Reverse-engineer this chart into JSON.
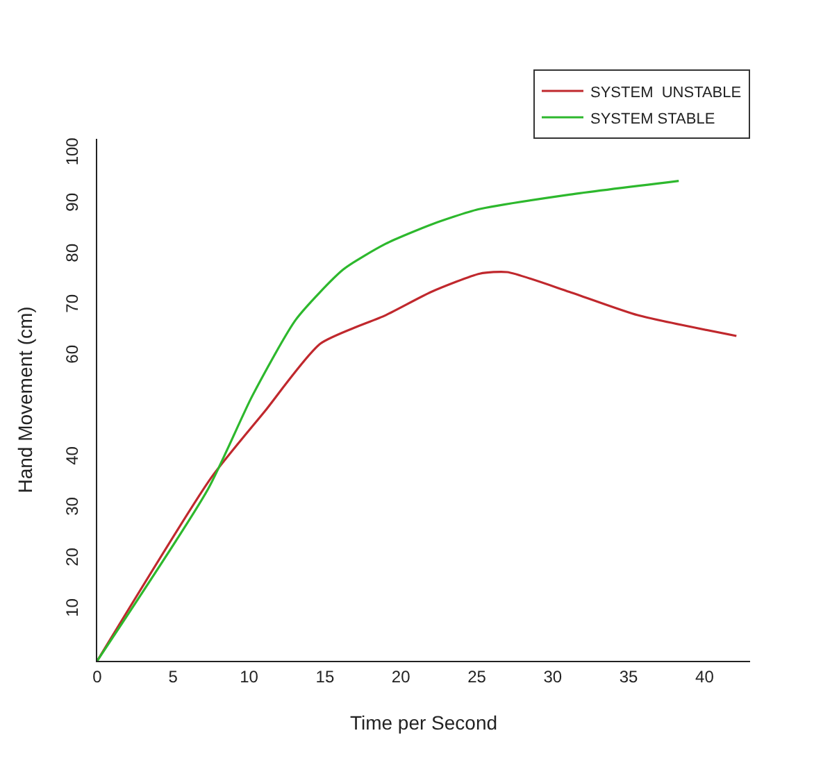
{
  "chart_data": {
    "type": "line",
    "xlabel": "Time per Second",
    "ylabel": "Hand Movement (cm)",
    "xlim": [
      0,
      43
    ],
    "ylim": [
      0,
      103
    ],
    "xticks": [
      0,
      5,
      10,
      15,
      20,
      25,
      30,
      35,
      40
    ],
    "yticks": [
      10,
      20,
      30,
      40,
      60,
      70,
      80,
      90,
      100
    ],
    "legend": "top right",
    "marker": "none",
    "line_style": "solid",
    "series": [
      {
        "name": "SYSTEM  UNSTABLE",
        "color": "#c0282d",
        "x": [
          0,
          7.5,
          11.0,
          14.7,
          19.0,
          22.0,
          25.2,
          27.0,
          31.1,
          35.6,
          42.1
        ],
        "values": [
          0,
          36.1,
          49.1,
          62.6,
          68.2,
          72.8,
          76.4,
          76.7,
          72.8,
          68.2,
          64.1
        ]
      },
      {
        "name": "SYSTEM STABLE",
        "color": "#2db82d",
        "x": [
          0,
          7.3,
          10.2,
          13.1,
          16.2,
          19.0,
          22.0,
          25.1,
          31.1,
          38.3
        ],
        "values": [
          0,
          33.9,
          52.2,
          67.4,
          77.2,
          82.3,
          86.1,
          89.1,
          92.0,
          94.7
        ]
      }
    ]
  }
}
